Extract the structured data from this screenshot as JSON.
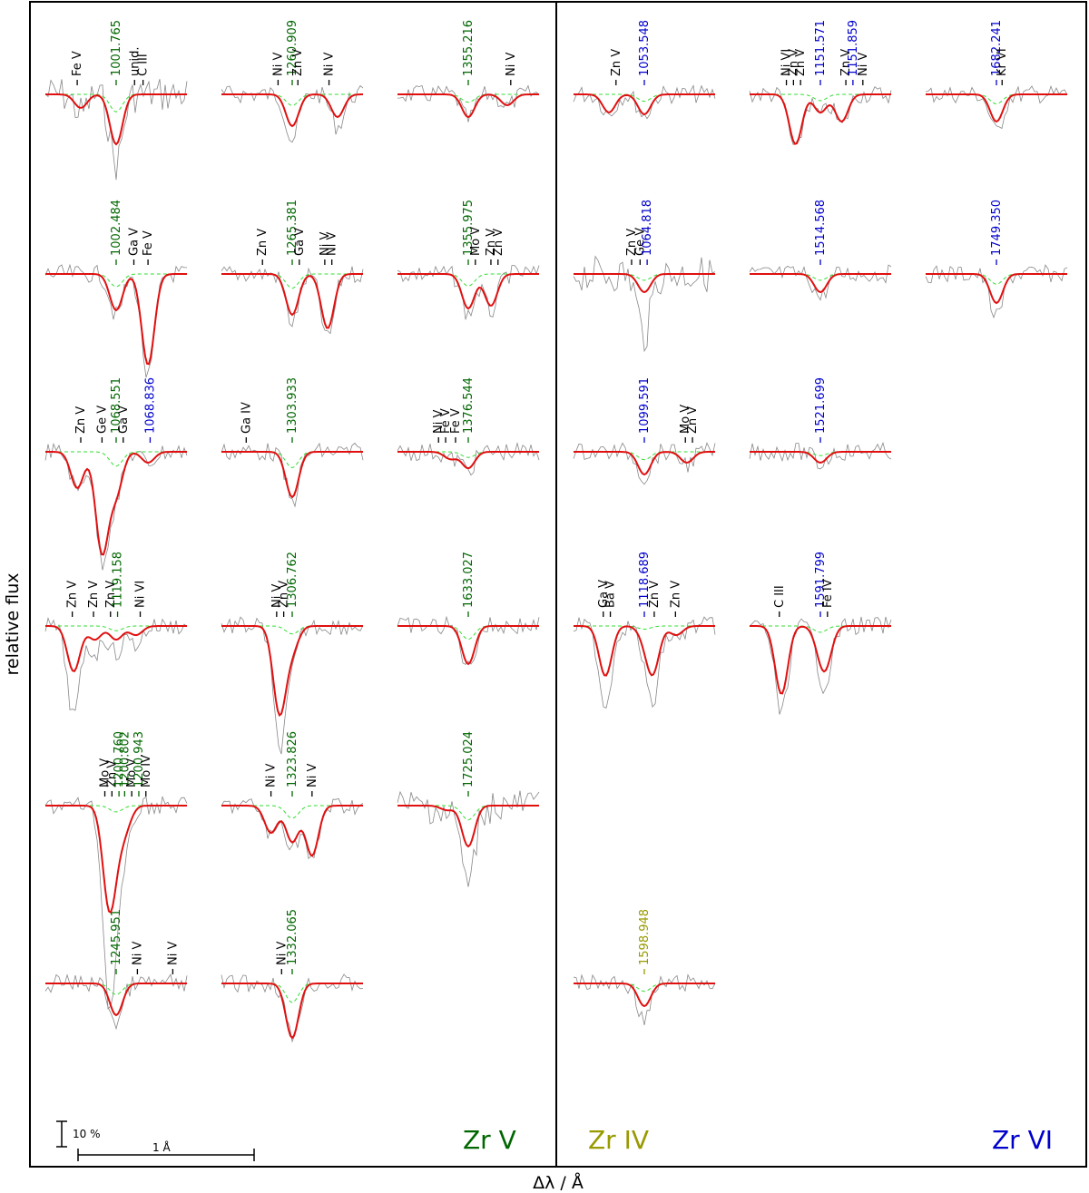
{
  "chart_data": {
    "type": "line",
    "description_axes": {
      "ylabel": "relative flux",
      "xlabel": "Δλ / Å"
    },
    "scale_bar": {
      "flux_label": "10 %",
      "wavelength_label": "1 Å"
    },
    "ion_labels": [
      {
        "name": "Zr V",
        "color": "#006600"
      },
      {
        "name": "Zr IV",
        "color": "#999900"
      },
      {
        "name": "Zr VI",
        "color": "#0000cc"
      }
    ],
    "colors": {
      "zr5": "#006600",
      "zr4": "#999900",
      "zr6": "#0000cc",
      "other": "#000000",
      "model": "#e01010",
      "component": "#33dd33",
      "observation": "#888888"
    },
    "panels": [
      {
        "id": "p1",
        "col": 0,
        "row": 0,
        "ion": "zr5",
        "wavelength": "1001.765",
        "depth": 0.55,
        "obsdip": 0.9,
        "extra": [
          {
            "dx": -0.5,
            "d": 0.15
          },
          {
            "dx": 0.4,
            "d": 0.0
          }
        ],
        "labels": [
          {
            "text": "Fe V",
            "dx": -0.55,
            "ion": "other"
          },
          {
            "text": "1001.765",
            "dx": 0,
            "ion": "zr5"
          },
          {
            "text": "unid.",
            "dx": 0.26,
            "ion": "other"
          },
          {
            "text": "C III",
            "dx": 0.38,
            "ion": "other"
          }
        ]
      },
      {
        "id": "p2",
        "col": 1,
        "row": 0,
        "ion": "zr5",
        "wavelength": "1260.909",
        "depth": 0.35,
        "obsdip": 0.6,
        "extra": [
          {
            "dx": 0.64,
            "d": 0.25
          }
        ],
        "labels": [
          {
            "text": "Ni V",
            "dx": -0.2,
            "ion": "other"
          },
          {
            "text": "1260.909",
            "dx": 0,
            "ion": "zr5"
          },
          {
            "text": "Zn V",
            "dx": 0.08,
            "ion": "other"
          },
          {
            "text": "Ni V",
            "dx": 0.52,
            "ion": "other"
          }
        ]
      },
      {
        "id": "p3",
        "col": 2,
        "row": 0,
        "ion": "zr5",
        "wavelength": "1355.216",
        "depth": 0.25,
        "obsdip": 0.3,
        "extra": [
          {
            "dx": 0.55,
            "d": 0.12
          }
        ],
        "labels": [
          {
            "text": "1355.216",
            "dx": 0,
            "ion": "zr5"
          },
          {
            "text": "Ni V",
            "dx": 0.6,
            "ion": "other"
          }
        ]
      },
      {
        "id": "p4",
        "col": 3,
        "row": 0,
        "ion": "zr6",
        "wavelength": "1053.548",
        "depth": 0.22,
        "obsdip": 0.25,
        "extra": [
          {
            "dx": -0.5,
            "d": 0.2
          }
        ],
        "labels": [
          {
            "text": "Zn V",
            "dx": -0.4,
            "ion": "other"
          },
          {
            "text": "1053.548",
            "dx": 0,
            "ion": "zr6"
          }
        ]
      },
      {
        "id": "p5",
        "col": 4,
        "row": 0,
        "ion": "zr6",
        "wavelength": "1151.571",
        "depth": 0.2,
        "obsdip": 0.25,
        "extra": [
          {
            "dx": -0.35,
            "d": 0.55
          },
          {
            "dx": 0.3,
            "d": 0.3
          }
        ],
        "labels": [
          {
            "text": "Ni VI",
            "dx": -0.48,
            "ion": "other"
          },
          {
            "text": "Zn V",
            "dx": -0.38,
            "ion": "other"
          },
          {
            "text": "Zn V",
            "dx": -0.28,
            "ion": "other"
          },
          {
            "text": "1151.571",
            "dx": 0,
            "ion": "zr6"
          },
          {
            "text": "Zn V",
            "dx": 0.36,
            "ion": "other"
          },
          {
            "text": "1151.859",
            "dx": 0.46,
            "ion": "zr6"
          },
          {
            "text": "Ni V",
            "dx": 0.6,
            "ion": "other"
          }
        ]
      },
      {
        "id": "p6",
        "col": 5,
        "row": 0,
        "ion": "zr6",
        "wavelength": "1682.241",
        "depth": 0.3,
        "obsdip": 0.5,
        "extra": [],
        "labels": [
          {
            "text": "1682.241",
            "dx": 0,
            "ion": "zr6"
          },
          {
            "text": "Kr VI",
            "dx": 0.08,
            "ion": "other"
          }
        ]
      },
      {
        "id": "p7",
        "col": 0,
        "row": 1,
        "ion": "zr5",
        "wavelength": "1002.484",
        "depth": 0.4,
        "obsdip": 0.5,
        "extra": [
          {
            "dx": 0.45,
            "d": 1.0
          }
        ],
        "labels": [
          {
            "text": "1002.484",
            "dx": 0,
            "ion": "zr5"
          },
          {
            "text": "Ga V",
            "dx": 0.25,
            "ion": "other"
          },
          {
            "text": "Fe V",
            "dx": 0.45,
            "ion": "other"
          }
        ]
      },
      {
        "id": "p8",
        "col": 1,
        "row": 1,
        "ion": "zr5",
        "wavelength": "1265.381",
        "depth": 0.45,
        "obsdip": 0.6,
        "extra": [
          {
            "dx": 0.5,
            "d": 0.6
          }
        ],
        "labels": [
          {
            "text": "Zn V",
            "dx": -0.42,
            "ion": "other"
          },
          {
            "text": "1265.381",
            "dx": 0,
            "ion": "zr5"
          },
          {
            "text": "Ga V",
            "dx": 0.1,
            "ion": "other"
          },
          {
            "text": "Ni V",
            "dx": 0.46,
            "ion": "other"
          },
          {
            "text": "Ni V",
            "dx": 0.56,
            "ion": "other"
          }
        ]
      },
      {
        "id": "p9",
        "col": 2,
        "row": 1,
        "ion": "zr5",
        "wavelength": "1355.975",
        "depth": 0.38,
        "obsdip": 0.5,
        "extra": [
          {
            "dx": 0.32,
            "d": 0.35
          }
        ],
        "labels": [
          {
            "text": "1355.975",
            "dx": 0,
            "ion": "zr5"
          },
          {
            "text": "Mo V",
            "dx": 0.1,
            "ion": "other"
          },
          {
            "text": "Zn V",
            "dx": 0.32,
            "ion": "other"
          },
          {
            "text": "Zn V",
            "dx": 0.42,
            "ion": "other"
          }
        ]
      },
      {
        "id": "p10",
        "col": 3,
        "row": 1,
        "ion": "zr6",
        "wavelength": "1064.818",
        "depth": 0.2,
        "obsdip": 1.0,
        "extra": [],
        "labels": [
          {
            "text": "Zn V",
            "dx": -0.18,
            "ion": "other"
          },
          {
            "text": "Ge V",
            "dx": -0.06,
            "ion": "other"
          },
          {
            "text": "1064.818",
            "dx": 0.04,
            "ion": "zr6"
          }
        ]
      },
      {
        "id": "p11",
        "col": 4,
        "row": 1,
        "ion": "zr6",
        "wavelength": "1514.568",
        "depth": 0.2,
        "obsdip": 0.3,
        "extra": [],
        "labels": [
          {
            "text": "1514.568",
            "dx": 0,
            "ion": "zr6"
          }
        ]
      },
      {
        "id": "p12",
        "col": 5,
        "row": 1,
        "ion": "zr6",
        "wavelength": "1749.350",
        "depth": 0.32,
        "obsdip": 0.6,
        "extra": [],
        "labels": [
          {
            "text": "1749.350",
            "dx": 0,
            "ion": "zr6"
          }
        ]
      },
      {
        "id": "p13",
        "col": 0,
        "row": 2,
        "ion": "zr5",
        "wavelength": "1068.551",
        "depth": 0.45,
        "obsdip": 0.5,
        "extra": [
          {
            "dx": -0.55,
            "d": 0.4
          },
          {
            "dx": -0.2,
            "d": 1.1
          },
          {
            "dx": 0.45,
            "d": 0.12
          }
        ],
        "labels": [
          {
            "text": "Zn V",
            "dx": -0.5,
            "ion": "other"
          },
          {
            "text": "Ge V",
            "dx": -0.2,
            "ion": "other"
          },
          {
            "text": "1068.551",
            "dx": 0,
            "ion": "zr5"
          },
          {
            "text": "Ga V",
            "dx": 0.1,
            "ion": "other"
          },
          {
            "text": "1068.836",
            "dx": 0.48,
            "ion": "zr6"
          }
        ]
      },
      {
        "id": "p14",
        "col": 1,
        "row": 2,
        "ion": "zr5",
        "wavelength": "1303.933",
        "depth": 0.5,
        "obsdip": 0.6,
        "extra": [],
        "labels": [
          {
            "text": "Ga IV",
            "dx": -0.65,
            "ion": "other"
          },
          {
            "text": "1303.933",
            "dx": 0,
            "ion": "zr5"
          }
        ]
      },
      {
        "id": "p15",
        "col": 2,
        "row": 2,
        "ion": "zr5",
        "wavelength": "1376.544",
        "depth": 0.18,
        "obsdip": 0.2,
        "extra": [
          {
            "dx": -0.25,
            "d": 0.08
          }
        ],
        "labels": [
          {
            "text": "Ni V",
            "dx": -0.42,
            "ion": "other"
          },
          {
            "text": "Fe V",
            "dx": -0.32,
            "ion": "other"
          },
          {
            "text": "Fe V",
            "dx": -0.18,
            "ion": "other"
          },
          {
            "text": "1376.544",
            "dx": 0,
            "ion": "zr5"
          }
        ]
      },
      {
        "id": "p16",
        "col": 3,
        "row": 2,
        "ion": "zr6",
        "wavelength": "1099.591",
        "depth": 0.25,
        "obsdip": 0.3,
        "extra": [
          {
            "dx": 0.6,
            "d": 0.12
          }
        ],
        "labels": [
          {
            "text": "1099.591",
            "dx": 0,
            "ion": "zr6"
          },
          {
            "text": "Mo V",
            "dx": 0.58,
            "ion": "other"
          },
          {
            "text": "Zn V",
            "dx": 0.68,
            "ion": "other"
          }
        ]
      },
      {
        "id": "p17",
        "col": 4,
        "row": 2,
        "ion": "zr6",
        "wavelength": "1521.699",
        "depth": 0.12,
        "obsdip": 0.15,
        "extra": [],
        "labels": [
          {
            "text": "1521.699",
            "dx": 0,
            "ion": "zr6"
          }
        ]
      },
      {
        "id": "p18",
        "col": 0,
        "row": 3,
        "ion": "zr5",
        "wavelength": "1119.158",
        "depth": 0.15,
        "obsdip": 0.4,
        "extra": [
          {
            "dx": -0.6,
            "d": 0.5
          },
          {
            "dx": -0.3,
            "d": 0.15
          },
          {
            "dx": 0.28,
            "d": 0.1
          }
        ],
        "labels": [
          {
            "text": "Zn V",
            "dx": -0.62,
            "ion": "other"
          },
          {
            "text": "Zn V",
            "dx": -0.32,
            "ion": "other"
          },
          {
            "text": "Zn V",
            "dx": -0.08,
            "ion": "other"
          },
          {
            "text": "1119.158",
            "dx": 0.02,
            "ion": "zr5"
          },
          {
            "text": "Ni VI",
            "dx": 0.34,
            "ion": "other"
          }
        ]
      },
      {
        "id": "p19",
        "col": 1,
        "row": 3,
        "ion": "zr5",
        "wavelength": "1306.762",
        "depth": 0.25,
        "obsdip": 0.4,
        "extra": [
          {
            "dx": -0.18,
            "d": 0.95
          }
        ],
        "labels": [
          {
            "text": "Ni V",
            "dx": -0.22,
            "ion": "other"
          },
          {
            "text": "Zn V",
            "dx": -0.12,
            "ion": "other"
          },
          {
            "text": "1306.762",
            "dx": 0,
            "ion": "zr5"
          }
        ]
      },
      {
        "id": "p20",
        "col": 2,
        "row": 3,
        "ion": "zr5",
        "wavelength": "1633.027",
        "depth": 0.42,
        "obsdip": 0.5,
        "extra": [],
        "labels": [
          {
            "text": "1633.027",
            "dx": 0,
            "ion": "zr5"
          }
        ]
      },
      {
        "id": "p21",
        "col": 3,
        "row": 3,
        "ion": "zr6",
        "wavelength": "1118.689",
        "depth": 0.1,
        "obsdip": 0.2,
        "extra": [
          {
            "dx": -0.55,
            "d": 0.55
          },
          {
            "dx": 0.12,
            "d": 0.5
          },
          {
            "dx": 0.45,
            "d": 0.1
          }
        ],
        "labels": [
          {
            "text": "Ga V",
            "dx": -0.58,
            "ion": "other"
          },
          {
            "text": "Ba V",
            "dx": -0.48,
            "ion": "other"
          },
          {
            "text": "1118.689",
            "dx": 0,
            "ion": "zr6"
          },
          {
            "text": "Zn V",
            "dx": 0.14,
            "ion": "other"
          },
          {
            "text": "Zn V",
            "dx": 0.44,
            "ion": "other"
          }
        ]
      },
      {
        "id": "p22",
        "col": 4,
        "row": 3,
        "ion": "zr6",
        "wavelength": "1591.799",
        "depth": 0.2,
        "obsdip": 0.3,
        "extra": [
          {
            "dx": -0.55,
            "d": 0.75
          },
          {
            "dx": 0.08,
            "d": 0.35
          }
        ],
        "labels": [
          {
            "text": "C III",
            "dx": -0.58,
            "ion": "other"
          },
          {
            "text": "1591.799",
            "dx": 0,
            "ion": "zr6"
          },
          {
            "text": "Fe IV",
            "dx": 0.1,
            "ion": "other"
          }
        ]
      },
      {
        "id": "p23",
        "col": 0,
        "row": 4,
        "ion": "zr5",
        "wavelength": "1200.760",
        "depth": 0.2,
        "obsdip": 0.5,
        "extra": [
          {
            "dx": -0.1,
            "d": 1.05
          },
          {
            "dx": 0.12,
            "d": 0.25
          }
        ],
        "labels": [
          {
            "text": "Mo V",
            "dx": -0.16,
            "ion": "other"
          },
          {
            "text": "Zn V",
            "dx": -0.06,
            "ion": "other"
          },
          {
            "text": "1200.760",
            "dx": 0.04,
            "ion": "zr5"
          },
          {
            "text": "1200.802",
            "dx": 0.12,
            "ion": "zr5"
          },
          {
            "text": "Mo V",
            "dx": 0.22,
            "ion": "other"
          },
          {
            "text": "1200.943",
            "dx": 0.32,
            "ion": "zr5"
          },
          {
            "text": "Mo IV",
            "dx": 0.42,
            "ion": "other"
          }
        ]
      },
      {
        "id": "p24",
        "col": 1,
        "row": 4,
        "ion": "zr5",
        "wavelength": "1323.826",
        "depth": 0.4,
        "obsdip": 0.5,
        "extra": [
          {
            "dx": -0.3,
            "d": 0.3
          },
          {
            "dx": 0.28,
            "d": 0.55
          }
        ],
        "labels": [
          {
            "text": "Ni V",
            "dx": -0.3,
            "ion": "other"
          },
          {
            "text": "1323.826",
            "dx": 0,
            "ion": "zr5"
          },
          {
            "text": "Ni V",
            "dx": 0.28,
            "ion": "other"
          }
        ]
      },
      {
        "id": "p25",
        "col": 2,
        "row": 4,
        "ion": "zr5",
        "wavelength": "1725.024",
        "depth": 0.45,
        "obsdip": 1.2,
        "extra": [
          {
            "dx": -0.3,
            "d": 0.05
          }
        ],
        "labels": [
          {
            "text": "1725.024",
            "dx": 0,
            "ion": "zr5"
          }
        ]
      },
      {
        "id": "p26",
        "col": 0,
        "row": 5,
        "ion": "zr5",
        "wavelength": "1245.951",
        "depth": 0.35,
        "obsdip": 0.5,
        "extra": [],
        "labels": [
          {
            "text": "1245.951",
            "dx": 0,
            "ion": "zr5"
          },
          {
            "text": "Ni V",
            "dx": 0.3,
            "ion": "other"
          },
          {
            "text": "Ni V",
            "dx": 0.8,
            "ion": "other"
          }
        ]
      },
      {
        "id": "p27",
        "col": 1,
        "row": 5,
        "ion": "zr5",
        "wavelength": "1332.065",
        "depth": 0.6,
        "obsdip": 0.6,
        "extra": [],
        "labels": [
          {
            "text": "Ni V",
            "dx": -0.15,
            "ion": "other"
          },
          {
            "text": "1332.065",
            "dx": 0,
            "ion": "zr5"
          }
        ]
      },
      {
        "id": "p28",
        "col": 3,
        "row": 5,
        "ion": "zr4",
        "wavelength": "1598.948",
        "depth": 0.25,
        "obsdip": 0.5,
        "extra": [],
        "labels": [
          {
            "text": "1598.948",
            "dx": 0,
            "ion": "zr4"
          }
        ]
      }
    ]
  }
}
